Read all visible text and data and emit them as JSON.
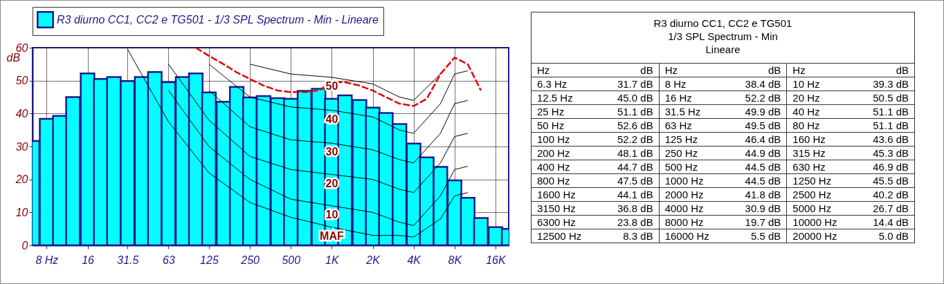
{
  "chart_data": [
    {
      "type": "bar",
      "ylabel": "dB",
      "legend": "top",
      "grid": true,
      "log": "x",
      "xlim": [
        6.3,
        20000
      ],
      "ylim": [
        0,
        60
      ],
      "yticks": [
        0,
        10,
        20,
        30,
        40,
        50,
        60
      ],
      "xticks": [
        {
          "value": 8,
          "label": "8 Hz"
        },
        16,
        31.5,
        63,
        125,
        250,
        500,
        {
          "value": 1000,
          "label": "1K"
        },
        {
          "value": 2000,
          "label": "2K"
        },
        {
          "value": 4000,
          "label": "4K"
        },
        {
          "value": 8000,
          "label": "8K"
        },
        {
          "value": 16000,
          "label": "16K"
        }
      ],
      "x": [
        6.3,
        8,
        10,
        12.5,
        16,
        20,
        25,
        31.5,
        40,
        50,
        63,
        80,
        100,
        125,
        160,
        200,
        250,
        315,
        400,
        500,
        630,
        800,
        1000,
        1250,
        1600,
        2000,
        2500,
        3150,
        4000,
        5000,
        6300,
        8000,
        10000,
        12500,
        16000,
        20000
      ],
      "series": [
        {
          "name": "R3 diurno CC1, CC2 e TG501 - 1/3 SPL Spectrum - Min - Lineare",
          "type": "bar",
          "color": "#00ffff",
          "values": [
            31.7,
            38.4,
            39.3,
            45.0,
            52.2,
            50.5,
            51.1,
            49.9,
            51.1,
            52.6,
            49.5,
            51.1,
            52.2,
            46.4,
            43.6,
            48.1,
            44.9,
            45.3,
            44.7,
            44.5,
            46.9,
            47.5,
            44.5,
            45.5,
            44.1,
            41.8,
            40.2,
            36.8,
            30.9,
            26.7,
            23.8,
            19.7,
            14.4,
            8.3,
            5.5,
            5.0
          ]
        },
        {
          "name": "MAF",
          "type": "line",
          "color": "#000000",
          "x": [
            31.5,
            63,
            125,
            250,
            500,
            1000,
            2000,
            3150,
            4000,
            6300,
            8000,
            10000
          ],
          "values": [
            59.5,
            37.5,
            22,
            13,
            8.5,
            5.5,
            3,
            3,
            2.5,
            8,
            15,
            16
          ]
        },
        {
          "name": "10",
          "type": "line",
          "color": "#000000",
          "x": [
            63,
            125,
            250,
            500,
            1000,
            2000,
            3150,
            4000,
            6300,
            8000,
            10000
          ],
          "values": [
            47,
            30,
            20,
            14,
            12,
            10,
            7,
            6,
            15,
            23,
            24
          ]
        },
        {
          "name": "20",
          "type": "line",
          "color": "#000000",
          "x": [
            63,
            125,
            250,
            500,
            1000,
            2000,
            3150,
            4000,
            6300,
            8000,
            10000
          ],
          "values": [
            55,
            38,
            27,
            23,
            21.5,
            20,
            17,
            16,
            25,
            33,
            34
          ]
        },
        {
          "name": "30",
          "type": "line",
          "color": "#000000",
          "x": [
            125,
            250,
            500,
            1000,
            2000,
            3150,
            4000,
            6300,
            8000,
            10000
          ],
          "values": [
            47,
            36,
            32,
            31,
            29,
            26,
            25,
            34,
            43,
            44
          ]
        },
        {
          "name": "40",
          "type": "line",
          "color": "#000000",
          "x": [
            125,
            250,
            500,
            1000,
            2000,
            3150,
            4000,
            6300,
            8000,
            10000
          ],
          "values": [
            55,
            45,
            42,
            41,
            39,
            35,
            34,
            43,
            52,
            53
          ]
        },
        {
          "name": "50",
          "type": "line",
          "color": "#000000",
          "x": [
            250,
            500,
            1000,
            2000,
            3150,
            4000,
            6300
          ],
          "values": [
            55,
            52,
            51,
            49,
            45,
            44,
            52
          ]
        },
        {
          "type": "line",
          "color": "#e00000",
          "line_style": "dashed",
          "x": [
            100,
            125,
            160,
            200,
            250,
            315,
            400,
            500,
            630,
            800,
            1000,
            1250,
            1600,
            2000,
            2500,
            3150,
            4000,
            5000,
            6300,
            8000,
            10000,
            12500
          ],
          "values": [
            60,
            57.5,
            55,
            52.5,
            50.5,
            48.5,
            47,
            46.5,
            46.5,
            47,
            49.5,
            49.5,
            48.5,
            47,
            45,
            43,
            42.3,
            44.5,
            52,
            57,
            55,
            47
          ]
        }
      ]
    },
    {
      "type": "other",
      "title": "R3 diurno CC1, CC2 e TG501",
      "subtitle": "1/3 SPL Spectrum - Min",
      "annotations": [
        "Lineare",
        "Hz",
        "dB"
      ],
      "categories": [
        "6.3 Hz",
        "8 Hz",
        "10 Hz",
        "12.5 Hz",
        "16 Hz",
        "20 Hz",
        "25 Hz",
        "31.5 Hz",
        "40 Hz",
        "50 Hz",
        "63 Hz",
        "80 Hz",
        "100 Hz",
        "125 Hz",
        "160 Hz",
        "200 Hz",
        "250 Hz",
        "315 Hz",
        "400 Hz",
        "500 Hz",
        "630 Hz",
        "800 Hz",
        "1000 Hz",
        "1250 Hz",
        "1600 Hz",
        "2000 Hz",
        "2500 Hz",
        "3150 Hz",
        "4000 Hz",
        "5000 Hz",
        "6300 Hz",
        "8000 Hz",
        "10000 Hz",
        "12500 Hz",
        "16000 Hz",
        "20000 Hz"
      ],
      "value_labels": [
        "31.7 dB",
        "38.4 dB",
        "39.3 dB",
        "45.0 dB",
        "52.2 dB",
        "50.5 dB",
        "51.1 dB",
        "49.9 dB",
        "51.1 dB",
        "52.6 dB",
        "49.5 dB",
        "51.1 dB",
        "52.2 dB",
        "46.4 dB",
        "43.6 dB",
        "48.1 dB",
        "44.9 dB",
        "45.3 dB",
        "44.7 dB",
        "44.5 dB",
        "46.9 dB",
        "47.5 dB",
        "44.5 dB",
        "45.5 dB",
        "44.1 dB",
        "41.8 dB",
        "40.2 dB",
        "36.8 dB",
        "30.9 dB",
        "26.7 dB",
        "23.8 dB",
        "19.7 dB",
        "14.4 dB",
        "8.3 dB",
        "5.5 dB",
        "5.0 dB"
      ]
    }
  ]
}
